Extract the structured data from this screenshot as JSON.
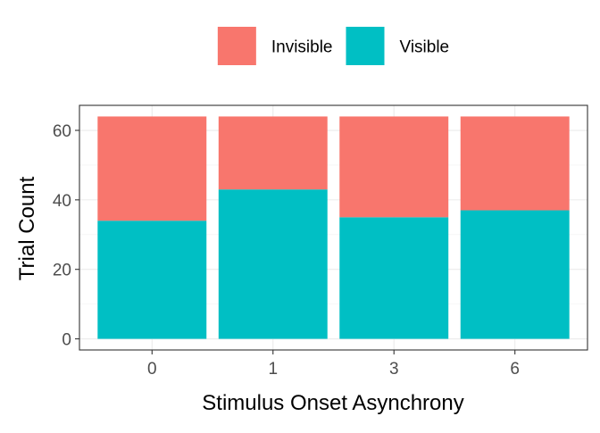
{
  "chart_data": {
    "type": "bar",
    "stacked": true,
    "categories": [
      "0",
      "1",
      "3",
      "6"
    ],
    "series": [
      {
        "name": "Invisible",
        "color": "#F8766D",
        "values": [
          30,
          21,
          29,
          27
        ]
      },
      {
        "name": "Visible",
        "color": "#00BFC4",
        "values": [
          34,
          43,
          35,
          37
        ]
      }
    ],
    "xlabel": "Stimulus Onset Asynchrony",
    "ylabel": "Trial Count",
    "yticks": [
      0,
      20,
      40,
      60
    ],
    "ylim": [
      -3.2,
      67.2
    ],
    "grid": true,
    "legend_position": "top"
  }
}
